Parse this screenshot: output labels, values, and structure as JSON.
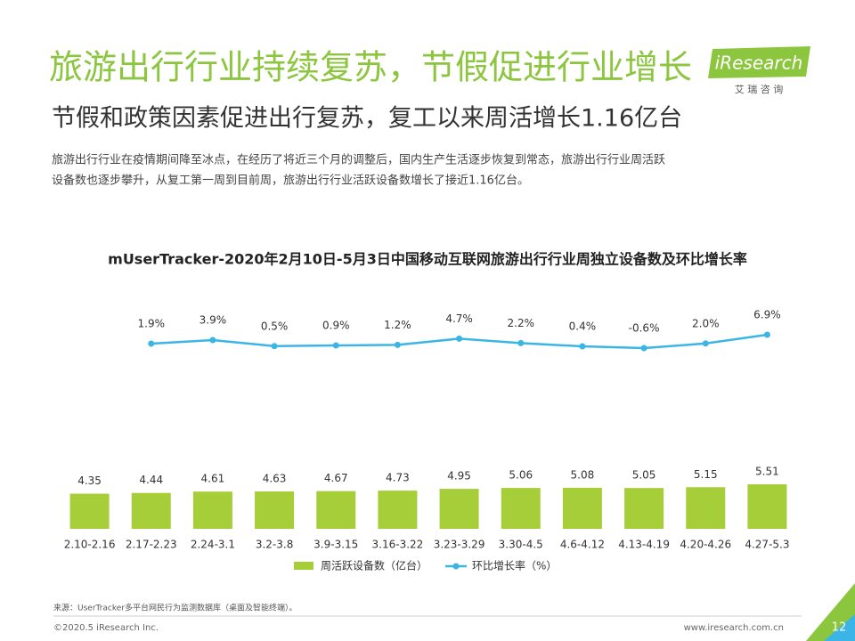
{
  "header": {
    "title": "旅游出行行业持续复苏，节假促进行业增长",
    "subtitle": "节假和政策因素促进出行复苏，复工以来周活增长1.16亿台",
    "description": [
      "旅游出行行业在疫情期间降至冰点，在经历了将近三个月的调整后，国内生产生活逐步恢复到常态，旅游出行行业周活跃",
      "设备数也逐步攀升，从复工第一周到目前周，旅游出行行业活跃设备数增长了接近1.16亿台。"
    ]
  },
  "logo": {
    "name": "iResearch",
    "cn": "艾 瑞 咨 询"
  },
  "chart_data": {
    "type": "bar",
    "title": "mUserTracker-2020年2月10日-5月3日中国移动互联网旅游出行行业周独立设备数及环比增长率",
    "categories": [
      "2.10-2.16",
      "2.17-2.23",
      "2.24-3.1",
      "3.2-3.8",
      "3.9-3.15",
      "3.16-3.22",
      "3.23-3.29",
      "3.30-4.5",
      "4.6-4.12",
      "4.13-4.19",
      "4.20-4.26",
      "4.27-5.3"
    ],
    "series": [
      {
        "name": "周活跃设备数（亿台）",
        "type": "bar",
        "color": "#a6ce39",
        "values": [
          4.35,
          4.44,
          4.61,
          4.63,
          4.67,
          4.73,
          4.95,
          5.06,
          5.08,
          5.05,
          5.15,
          5.51
        ]
      },
      {
        "name": "环比增长率（%）",
        "type": "line",
        "color": "#3bb5e5",
        "values": [
          null,
          1.9,
          3.9,
          0.5,
          0.9,
          1.2,
          4.7,
          2.2,
          0.4,
          -0.6,
          2.0,
          6.9
        ],
        "value_labels": [
          null,
          "1.9%",
          "3.9%",
          "0.5%",
          "0.9%",
          "1.2%",
          "4.7%",
          "2.2%",
          "0.4%",
          "-0.6%",
          "2.0%",
          "6.9%"
        ]
      }
    ]
  },
  "footer": {
    "source": "来源：UserTracker多平台网民行为监测数据库（桌面及智能终端）。",
    "copyright": "©2020.5 iResearch Inc.",
    "url": "www.iresearch.com.cn",
    "page": "12"
  }
}
